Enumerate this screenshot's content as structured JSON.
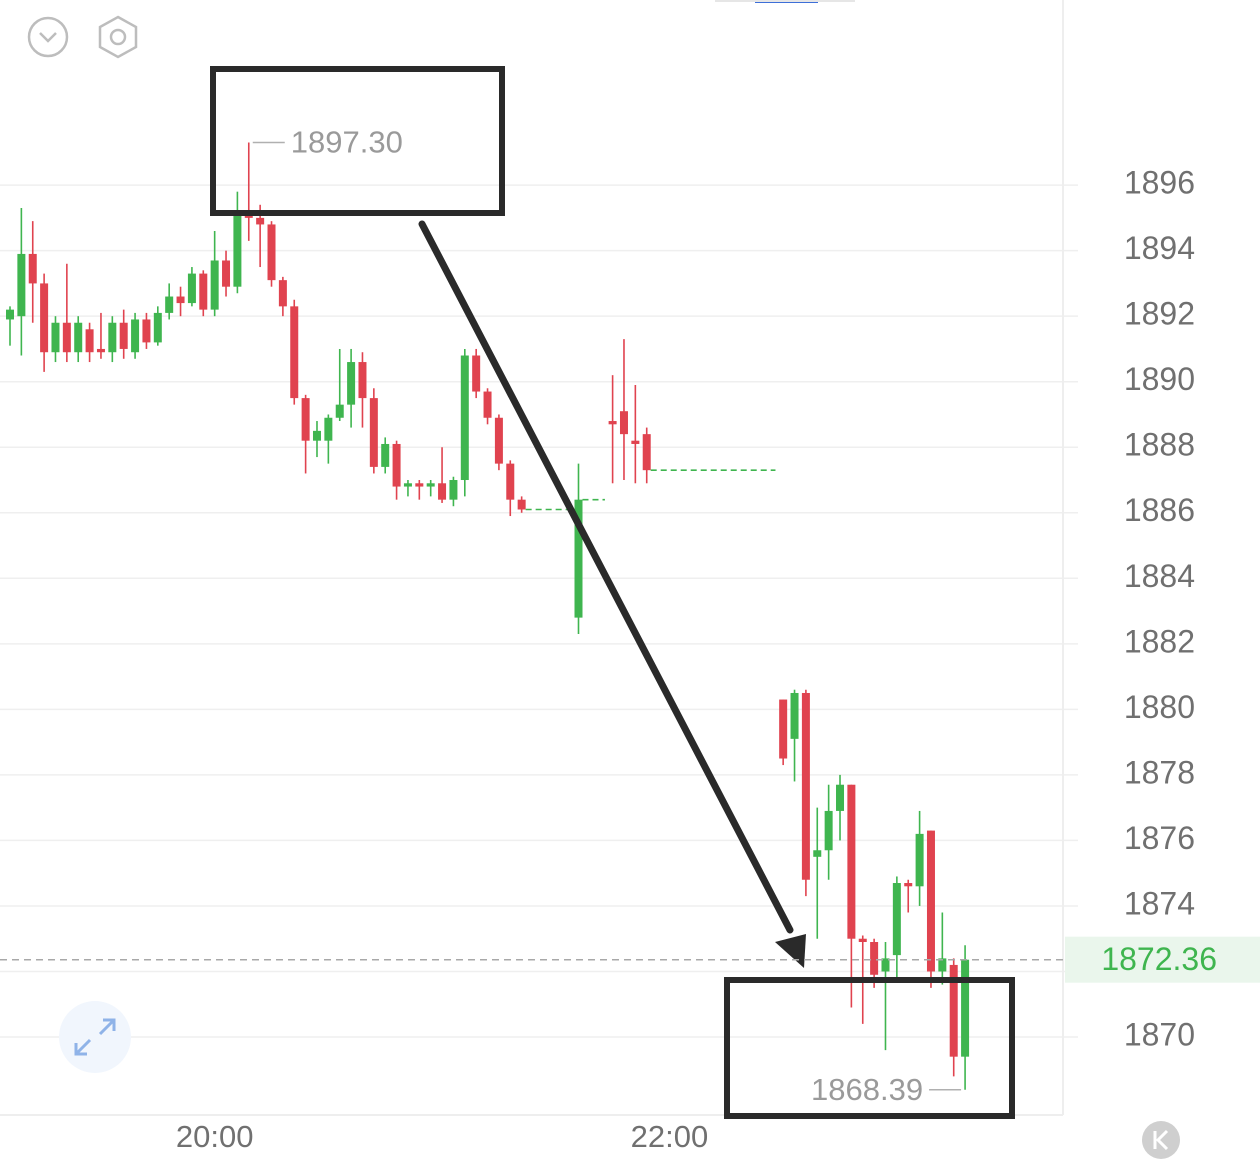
{
  "chart_data": {
    "type": "candlestick",
    "categories": [
      null,
      null,
      null,
      null,
      null,
      null,
      null,
      null,
      null,
      null,
      null,
      null,
      null,
      null,
      null,
      null,
      null,
      null,
      "20:00",
      null,
      null,
      null,
      null,
      null,
      null,
      null,
      null,
      null,
      null,
      null,
      null,
      null,
      null,
      null,
      null,
      null,
      null,
      null,
      null,
      null,
      null,
      null,
      null,
      null,
      null,
      null,
      null,
      null,
      null,
      null,
      null,
      null,
      null,
      null,
      null,
      null,
      null,
      null,
      "22:00",
      null,
      null,
      null,
      null,
      null,
      null,
      null,
      null,
      null,
      null,
      null,
      null,
      null,
      null,
      null,
      null,
      null,
      null,
      null,
      null,
      null,
      null,
      null,
      null,
      null,
      null
    ],
    "open": [
      1891.9,
      1892.0,
      1893.9,
      1893.0,
      1890.9,
      1891.8,
      1890.9,
      1891.6,
      1891.0,
      1890.9,
      1891.8,
      1890.9,
      1891.9,
      1891.2,
      1892.1,
      1892.6,
      1892.4,
      1893.3,
      1892.2,
      1893.7,
      1892.9,
      1895.2,
      1895.0,
      1894.8,
      1893.1,
      1892.3,
      1889.5,
      1888.2,
      1888.2,
      1888.9,
      1889.3,
      1890.6,
      1889.5,
      1887.4,
      1888.1,
      1886.8,
      1886.9,
      1886.8,
      1886.9,
      1886.4,
      1887.0,
      1890.8,
      1889.7,
      1888.9,
      1887.5,
      1886.4,
      null,
      null,
      null,
      null,
      1882.8,
      null,
      null,
      1888.8,
      1889.1,
      1888.2,
      1888.4,
      null,
      null,
      null,
      null,
      null,
      null,
      null,
      null,
      null,
      null,
      null,
      1880.3,
      1879.1,
      1880.5,
      1875.5,
      1875.7,
      1876.9,
      1877.7,
      1873.0,
      1872.9,
      1872.0,
      1872.5,
      1874.7,
      1874.6,
      1876.3,
      1872.0,
      1872.2,
      1869.4
    ],
    "high": [
      1892.3,
      1895.3,
      1894.9,
      1893.3,
      1892.0,
      1893.6,
      1892.0,
      1891.8,
      1892.1,
      1892.0,
      1892.2,
      1892.1,
      1892.1,
      1892.3,
      1893.0,
      1892.9,
      1893.5,
      1893.4,
      1894.6,
      1894.0,
      1895.8,
      1897.3,
      1895.4,
      1894.9,
      1893.2,
      1892.5,
      1889.6,
      1888.8,
      1889.0,
      1891.0,
      1891.0,
      1890.9,
      1889.8,
      1888.3,
      1888.2,
      1887.0,
      1887.0,
      1887.0,
      1888.0,
      1887.1,
      1891.0,
      1891.0,
      1889.8,
      1889.0,
      1887.6,
      1886.5,
      null,
      null,
      null,
      null,
      1887.5,
      null,
      null,
      1890.2,
      1891.3,
      1889.9,
      1888.6,
      null,
      null,
      null,
      null,
      null,
      null,
      null,
      null,
      null,
      null,
      null,
      1880.3,
      1880.6,
      1880.6,
      1877.0,
      1877.7,
      1878.0,
      1877.7,
      1873.1,
      1873.0,
      1872.9,
      1874.9,
      1874.8,
      1876.9,
      1876.3,
      1873.8,
      1872.4,
      1872.8
    ],
    "low": [
      1891.1,
      1890.8,
      1891.8,
      1890.3,
      1890.6,
      1890.6,
      1890.6,
      1890.6,
      1890.7,
      1890.6,
      1890.7,
      1890.7,
      1891.0,
      1891.1,
      1891.9,
      1892.0,
      1892.3,
      1892.0,
      1892.0,
      1892.6,
      1892.7,
      1894.3,
      1893.5,
      1892.9,
      1892.0,
      1889.3,
      1887.2,
      1887.7,
      1887.5,
      1888.8,
      1888.6,
      1888.6,
      1887.2,
      1887.2,
      1886.4,
      1886.5,
      1886.4,
      1886.5,
      1886.3,
      1886.2,
      1886.5,
      1889.5,
      1888.7,
      1887.3,
      1885.9,
      1886.0,
      null,
      null,
      null,
      null,
      1882.3,
      null,
      null,
      1886.9,
      1887.0,
      1886.9,
      1886.9,
      null,
      null,
      null,
      null,
      null,
      null,
      null,
      null,
      null,
      null,
      null,
      1878.3,
      1877.8,
      1874.3,
      1873.0,
      1874.8,
      1876.0,
      1870.9,
      1870.4,
      1871.5,
      1869.6,
      1871.8,
      1873.8,
      1874.0,
      1871.5,
      1871.6,
      1868.8,
      1868.39
    ],
    "close": [
      1892.2,
      1893.9,
      1893.0,
      1890.9,
      1891.8,
      1890.9,
      1891.8,
      1890.9,
      1890.9,
      1891.8,
      1891.0,
      1891.9,
      1891.2,
      1892.1,
      1892.6,
      1892.4,
      1893.3,
      1892.2,
      1893.7,
      1892.9,
      1895.2,
      1895.0,
      1894.8,
      1893.1,
      1892.3,
      1889.5,
      1888.2,
      1888.5,
      1888.9,
      1889.3,
      1890.6,
      1889.5,
      1887.4,
      1888.1,
      1886.8,
      1886.9,
      1886.8,
      1886.9,
      1886.4,
      1887.0,
      1890.8,
      1889.7,
      1888.9,
      1887.5,
      1886.4,
      1886.1,
      null,
      null,
      null,
      null,
      1886.4,
      null,
      null,
      1888.7,
      1888.4,
      1888.1,
      1887.3,
      null,
      null,
      null,
      null,
      null,
      null,
      null,
      null,
      null,
      null,
      null,
      1878.5,
      1880.5,
      1874.8,
      1875.7,
      1876.9,
      1877.7,
      1873.0,
      1872.9,
      1871.9,
      1872.4,
      1874.7,
      1874.6,
      1876.2,
      1872.0,
      1872.4,
      1869.4,
      1872.36
    ],
    "up_color": "#3fb54f",
    "down_color": "#e0434f",
    "ylim": [
      1867.62,
      1901.65
    ],
    "yticks": [
      1870,
      1872,
      1874,
      1876,
      1878,
      1880,
      1882,
      1884,
      1886,
      1888,
      1890,
      1892,
      1894,
      1896
    ],
    "grid": true,
    "high_label": {
      "value": 1897.3,
      "label": "1897.30"
    },
    "low_label": {
      "value": 1868.39,
      "label": "1868.39"
    },
    "last_price": 1872.36
  }
}
